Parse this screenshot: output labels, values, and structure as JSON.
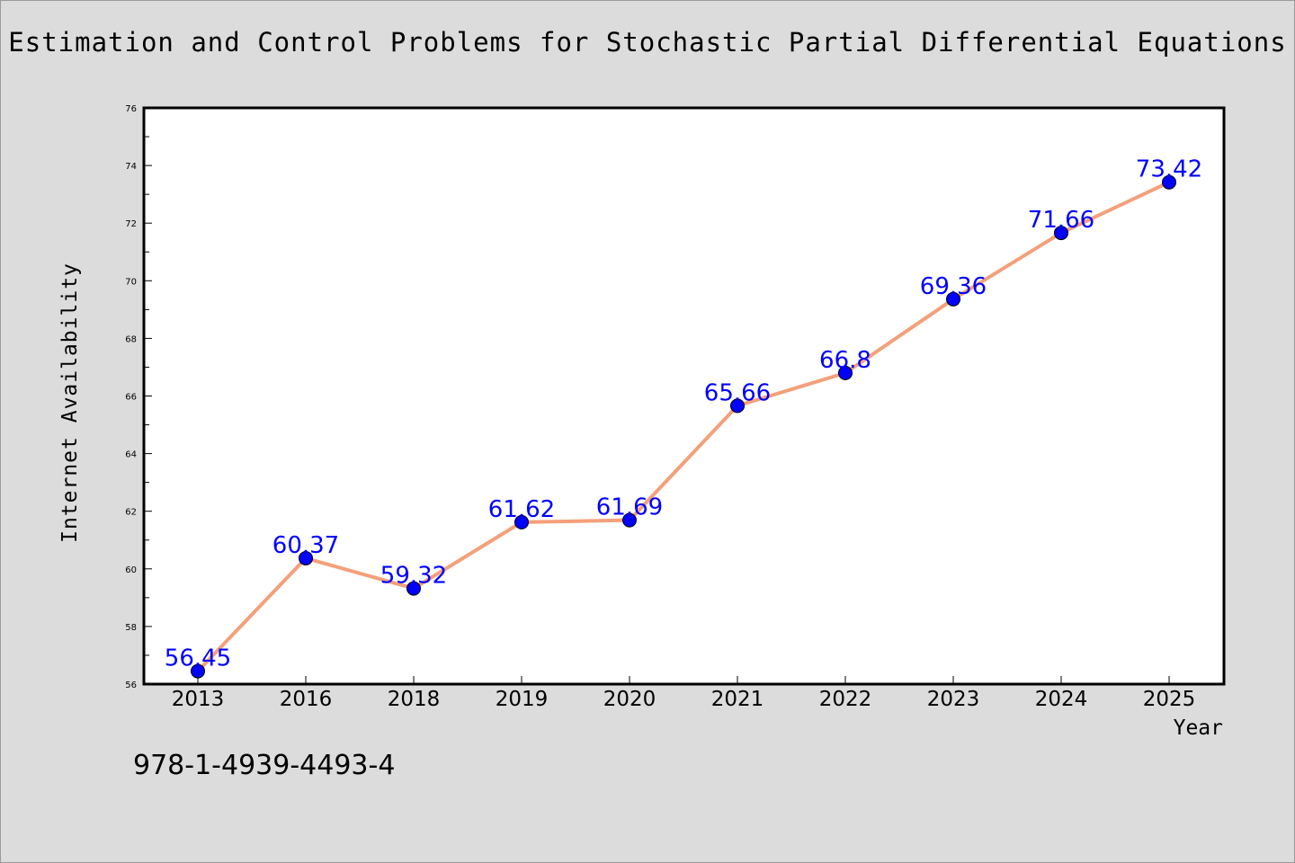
{
  "chart_data": {
    "type": "line",
    "title": "Estimation and Control Problems for Stochastic Partial Differential Equations",
    "xlabel": "Year",
    "ylabel": "Internet Availability",
    "categories": [
      "2013",
      "2016",
      "2018",
      "2019",
      "2020",
      "2021",
      "2022",
      "2023",
      "2024",
      "2025"
    ],
    "series": [
      {
        "values": [
          56.45,
          60.37,
          59.32,
          61.62,
          61.69,
          65.66,
          66.8,
          69.36,
          71.66,
          73.42
        ],
        "data_labels": [
          "56.45",
          "60.37",
          "59.32",
          "61.62",
          "61.69",
          "65.66",
          "66.8",
          "69.36",
          "71.66",
          "73.42"
        ]
      }
    ],
    "ylim": [
      56,
      76
    ],
    "yticks": [
      "56",
      "58",
      "60",
      "62",
      "64",
      "66",
      "68",
      "70",
      "72",
      "74",
      "76"
    ],
    "grid": false,
    "line_color": "#f4a07a",
    "marker_color": "#0000ff",
    "label_color": "#0000ff"
  },
  "annotation": {
    "isbn": "978-1-4939-4493-4"
  }
}
